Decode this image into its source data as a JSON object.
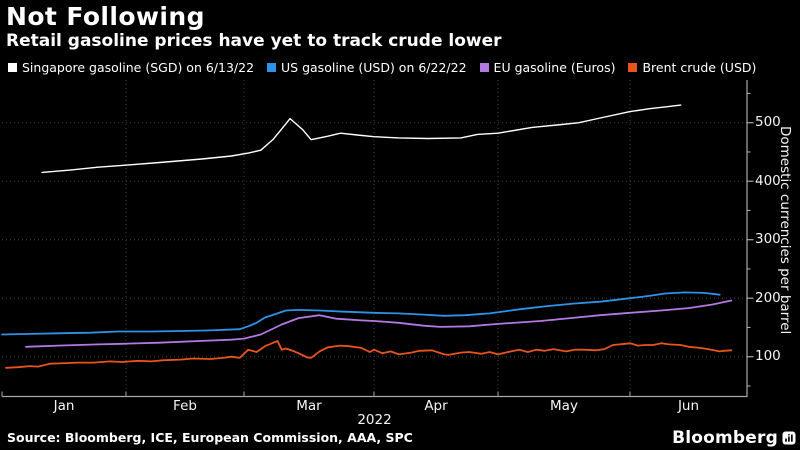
{
  "header": {
    "title": "Not Following",
    "subtitle": "Retail gasoline prices have yet to track crude lower"
  },
  "legend": {
    "items": [
      {
        "label": "Singapore gasoline (SGD) on 6/13/22",
        "color": "#FFFFFF"
      },
      {
        "label": "US gasoline (USD) on 6/22/22",
        "color": "#2E93E8"
      },
      {
        "label": "EU gasoline (Euros)",
        "color": "#B379E3"
      },
      {
        "label": "Brent crude (USD)",
        "color": "#E8541B"
      }
    ]
  },
  "chart_data": {
    "type": "line",
    "title": "Not Following",
    "subtitle": "Retail gasoline prices have yet to track crude lower",
    "x_axis": {
      "tick_labels": [
        "Jan",
        "Feb",
        "Mar",
        "Apr",
        "May",
        "Jun"
      ],
      "year_label": "2022",
      "unit": "day_of_year_2022",
      "range": [
        1,
        182
      ],
      "grid": true
    },
    "y_axis": {
      "label": "Domestic currencies per barrel",
      "side": "right",
      "ticks": [
        100,
        200,
        300,
        400,
        500
      ],
      "minor_ticks": [
        50,
        150,
        250,
        350,
        450,
        550
      ],
      "range": [
        32,
        573
      ],
      "grid": true
    },
    "legend_position": "top",
    "series": [
      {
        "name": "Singapore gasoline (SGD) on 6/13/22",
        "color": "#FFFFFF",
        "points": [
          [
            11,
            415
          ],
          [
            18,
            419
          ],
          [
            25,
            424
          ],
          [
            31,
            427
          ],
          [
            40,
            432
          ],
          [
            50,
            438
          ],
          [
            57,
            443
          ],
          [
            61,
            448
          ],
          [
            64,
            453
          ],
          [
            67,
            472
          ],
          [
            71,
            507
          ],
          [
            74,
            488
          ],
          [
            76,
            471
          ],
          [
            80,
            477
          ],
          [
            83,
            482
          ],
          [
            87,
            479
          ],
          [
            91,
            476
          ],
          [
            97,
            474
          ],
          [
            104,
            473
          ],
          [
            112,
            474
          ],
          [
            116,
            480
          ],
          [
            121,
            482
          ],
          [
            129,
            492
          ],
          [
            136,
            497
          ],
          [
            140,
            500
          ],
          [
            145,
            508
          ],
          [
            152,
            519
          ],
          [
            157,
            524
          ],
          [
            161,
            527
          ],
          [
            165,
            530
          ]
        ]
      },
      {
        "name": "US gasoline (USD) on 6/22/22",
        "color": "#2E93E8",
        "points": [
          [
            1,
            138
          ],
          [
            8,
            139
          ],
          [
            15,
            140
          ],
          [
            23,
            141
          ],
          [
            30,
            143
          ],
          [
            38,
            143
          ],
          [
            45,
            144
          ],
          [
            52,
            145
          ],
          [
            59,
            147
          ],
          [
            61,
            152
          ],
          [
            63,
            158
          ],
          [
            65,
            167
          ],
          [
            68,
            174
          ],
          [
            70,
            179
          ],
          [
            73,
            180
          ],
          [
            78,
            179
          ],
          [
            84,
            177
          ],
          [
            91,
            175
          ],
          [
            97,
            174
          ],
          [
            103,
            172
          ],
          [
            108,
            170
          ],
          [
            113,
            171
          ],
          [
            119,
            174
          ],
          [
            126,
            181
          ],
          [
            132,
            186
          ],
          [
            139,
            191
          ],
          [
            145,
            194
          ],
          [
            152,
            200
          ],
          [
            157,
            204
          ],
          [
            161,
            208
          ],
          [
            166,
            210
          ],
          [
            171,
            209
          ],
          [
            175,
            206
          ]
        ]
      },
      {
        "name": "EU gasoline (Euros)",
        "color": "#B379E3",
        "points": [
          [
            7,
            117
          ],
          [
            15,
            119
          ],
          [
            25,
            121
          ],
          [
            31,
            122
          ],
          [
            40,
            124
          ],
          [
            50,
            127
          ],
          [
            57,
            129
          ],
          [
            60,
            131
          ],
          [
            64,
            138
          ],
          [
            69,
            155
          ],
          [
            73,
            166
          ],
          [
            78,
            171
          ],
          [
            82,
            165
          ],
          [
            88,
            162
          ],
          [
            91,
            161
          ],
          [
            97,
            158
          ],
          [
            103,
            153
          ],
          [
            107,
            151
          ],
          [
            114,
            152
          ],
          [
            121,
            156
          ],
          [
            131,
            161
          ],
          [
            138,
            166
          ],
          [
            145,
            171
          ],
          [
            152,
            175
          ],
          [
            160,
            179
          ],
          [
            167,
            183
          ],
          [
            173,
            189
          ],
          [
            178,
            196
          ]
        ]
      },
      {
        "name": "Brent crude (USD)",
        "color": "#E8541B",
        "points": [
          [
            2,
            81
          ],
          [
            5,
            82
          ],
          [
            8,
            84
          ],
          [
            10,
            83
          ],
          [
            13,
            88
          ],
          [
            17,
            89
          ],
          [
            20,
            90
          ],
          [
            24,
            90
          ],
          [
            28,
            92
          ],
          [
            31,
            91
          ],
          [
            35,
            93
          ],
          [
            38,
            92
          ],
          [
            41,
            94
          ],
          [
            45,
            95
          ],
          [
            48,
            97
          ],
          [
            52,
            96
          ],
          [
            55,
            98
          ],
          [
            57,
            100
          ],
          [
            59,
            98
          ],
          [
            61,
            112
          ],
          [
            63,
            108
          ],
          [
            65,
            118
          ],
          [
            67,
            124
          ],
          [
            68,
            127
          ],
          [
            69,
            112
          ],
          [
            70,
            114
          ],
          [
            72,
            109
          ],
          [
            73,
            106
          ],
          [
            75,
            99
          ],
          [
            76,
            98
          ],
          [
            78,
            109
          ],
          [
            80,
            116
          ],
          [
            83,
            119
          ],
          [
            85,
            118
          ],
          [
            88,
            115
          ],
          [
            90,
            108
          ],
          [
            91,
            112
          ],
          [
            93,
            106
          ],
          [
            95,
            109
          ],
          [
            97,
            104
          ],
          [
            100,
            107
          ],
          [
            102,
            110
          ],
          [
            105,
            111
          ],
          [
            108,
            104
          ],
          [
            109,
            103
          ],
          [
            112,
            107
          ],
          [
            114,
            108
          ],
          [
            117,
            105
          ],
          [
            119,
            108
          ],
          [
            121,
            104
          ],
          [
            124,
            109
          ],
          [
            126,
            112
          ],
          [
            128,
            108
          ],
          [
            130,
            112
          ],
          [
            132,
            110
          ],
          [
            134,
            113
          ],
          [
            137,
            109
          ],
          [
            139,
            112
          ],
          [
            141,
            112
          ],
          [
            144,
            111
          ],
          [
            146,
            113
          ],
          [
            148,
            120
          ],
          [
            151,
            122
          ],
          [
            152,
            123
          ],
          [
            154,
            119
          ],
          [
            156,
            120
          ],
          [
            158,
            120
          ],
          [
            160,
            123
          ],
          [
            162,
            121
          ],
          [
            165,
            120
          ],
          [
            167,
            117
          ],
          [
            170,
            115
          ],
          [
            172,
            113
          ],
          [
            175,
            109
          ],
          [
            176,
            110
          ],
          [
            178,
            111
          ]
        ]
      }
    ]
  },
  "footer": {
    "source": "Source: Bloomberg, ICE, European Commission, AAA, SPC",
    "brand": "Bloomberg",
    "brand_icon": "bloomberg-terminal-icon"
  }
}
